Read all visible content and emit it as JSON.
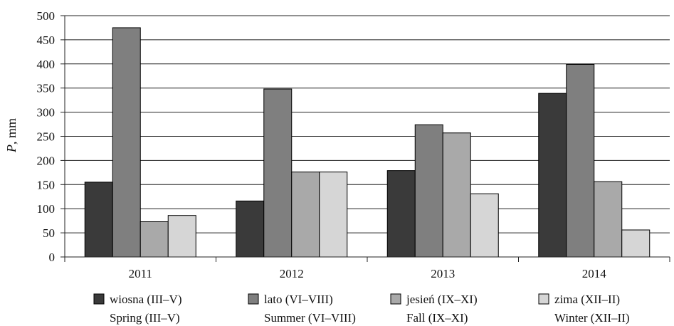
{
  "chart_data": {
    "type": "bar",
    "title": "",
    "ylabel_var": "P",
    "ylabel_unit": ", mm",
    "xlabel": "",
    "categories": [
      "2011",
      "2012",
      "2013",
      "2014"
    ],
    "ylim": [
      0,
      500
    ],
    "yticks": [
      0,
      50,
      100,
      150,
      200,
      250,
      300,
      350,
      400,
      450,
      500
    ],
    "grid": "horizontal",
    "legend_position": "bottom",
    "series": [
      {
        "name": "wiosna (III–V)",
        "name_en": "Spring (III–V)",
        "color": "#3a3a3a",
        "values": [
          155,
          116,
          179,
          339
        ]
      },
      {
        "name": "lato (VI–VIII)",
        "name_en": "Summer (VI–VIII)",
        "color": "#7f7f7f",
        "values": [
          475,
          348,
          274,
          399
        ]
      },
      {
        "name": "jesień (IX–XI)",
        "name_en": "Fall (IX–XI)",
        "color": "#a9a9a9",
        "values": [
          73,
          176,
          257,
          156
        ]
      },
      {
        "name": "zima (XII–II)",
        "name_en": "Winter (XII–II)",
        "color": "#d6d6d6",
        "values": [
          86,
          176,
          131,
          56
        ]
      }
    ]
  }
}
